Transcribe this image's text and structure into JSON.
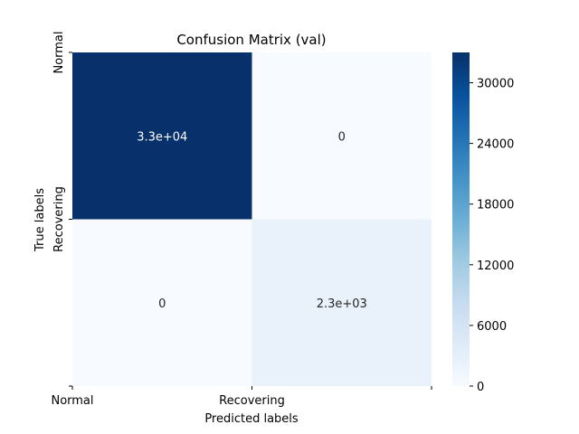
{
  "chart_data": {
    "type": "heatmap",
    "title": "Confusion Matrix (val)",
    "xlabel": "Predicted labels",
    "ylabel": "True labels",
    "x_categories": [
      "Normal",
      "Recovering"
    ],
    "y_categories": [
      "Normal",
      "Recovering"
    ],
    "values": [
      [
        33000,
        0
      ],
      [
        0,
        2300
      ]
    ],
    "annotations": [
      [
        "3.3e+04",
        "0"
      ],
      [
        "0",
        "2.3e+03"
      ]
    ],
    "colormap": "Blues",
    "color_low": "#f7fbff",
    "color_high": "#08306b",
    "vmin": 0,
    "vmax": 33000,
    "colorbar_ticks": [
      0,
      6000,
      12000,
      18000,
      24000,
      30000
    ],
    "colorbar_tick_labels": [
      "0",
      "6000",
      "12000",
      "18000",
      "24000",
      "30000"
    ]
  }
}
